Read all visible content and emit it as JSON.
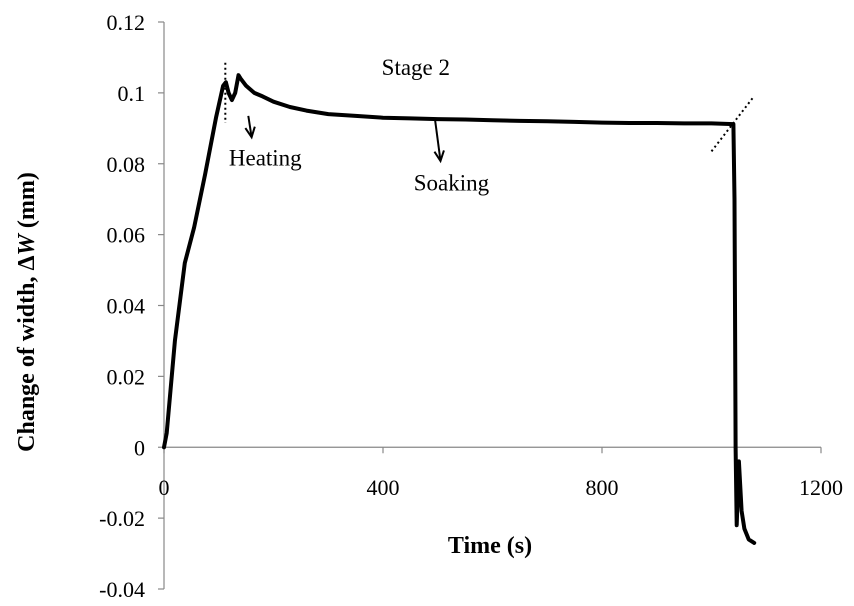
{
  "chart_data": {
    "type": "line",
    "xlabel": "Time (s)",
    "ylabel": {
      "prefix": "Change of width, ",
      "symbol": "ΔW",
      "delta": "Δ",
      "var": "W",
      "unit": " (mm)"
    },
    "xlim": [
      0,
      1200
    ],
    "ylim": [
      -0.04,
      0.12
    ],
    "xticks": [
      0,
      400,
      800,
      1200
    ],
    "xtick_labels": [
      "0",
      "400",
      "800",
      "1200"
    ],
    "yticks": [
      -0.04,
      -0.02,
      0,
      0.02,
      0.04,
      0.06,
      0.08,
      0.1,
      0.12
    ],
    "ytick_labels": [
      "-0.04",
      "-0.02",
      "0",
      "0.02",
      "0.04",
      "0.06",
      "0.08",
      "0.1",
      "0.12"
    ],
    "grid": false,
    "legend": false,
    "series": [
      {
        "x": [
          0,
          5,
          20,
          38,
          55,
          75,
          95,
          108,
          113,
          118,
          124,
          130,
          136,
          140,
          150,
          165,
          180,
          200,
          230,
          260,
          300,
          350,
          400,
          450,
          500,
          550,
          600,
          650,
          700,
          750,
          800,
          850,
          900,
          950,
          1000,
          1040,
          1042,
          1043,
          1044,
          1046,
          1050,
          1055,
          1060,
          1068,
          1078
        ],
        "y": [
          0,
          0.004,
          0.03,
          0.052,
          0.062,
          0.077,
          0.093,
          0.102,
          0.103,
          0.1,
          0.098,
          0.1,
          0.105,
          0.104,
          0.102,
          0.1,
          0.099,
          0.0975,
          0.096,
          0.095,
          0.094,
          0.0935,
          0.093,
          0.0928,
          0.0926,
          0.0925,
          0.0923,
          0.0921,
          0.092,
          0.0918,
          0.0916,
          0.0915,
          0.0915,
          0.0914,
          0.0914,
          0.0912,
          0.07,
          0.04,
          0.0,
          -0.022,
          -0.004,
          -0.018,
          -0.023,
          -0.026,
          -0.027
        ],
        "color": "#000000"
      }
    ],
    "annotations": [
      {
        "text": "Stage 2",
        "x": 460,
        "y": 0.105
      },
      {
        "text": "Heating",
        "x": 185,
        "y": 0.0795
      },
      {
        "text": "Soaking",
        "x": 525,
        "y": 0.0725
      }
    ],
    "arrows": [
      {
        "from": [
          160,
          0.0885
        ],
        "to": [
          170,
          0.0878
        ],
        "x1": 154,
        "y1": 0.0935,
        "x2": 160,
        "y2": 0.0875,
        "label": "Heating"
      },
      {
        "x1": 495,
        "y1": 0.0925,
        "x2": 505,
        "y2": 0.0808,
        "label": "Soaking"
      }
    ],
    "dotted_markers": [
      {
        "x1": 112,
        "y1": 0.1085,
        "x2": 112,
        "y2": 0.0915
      },
      {
        "x1": 1000,
        "y1": 0.0835,
        "x2": 1075,
        "y2": 0.0985
      }
    ]
  }
}
